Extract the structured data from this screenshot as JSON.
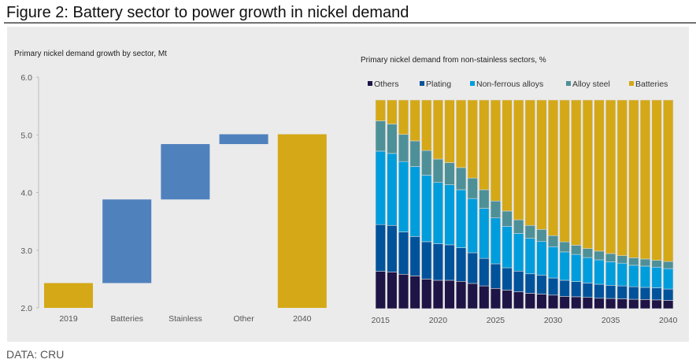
{
  "figure": {
    "title": "Figure 2: Battery sector to power growth in nickel demand",
    "source": "DATA: CRU",
    "background": "#ebebeb"
  },
  "chart_data": [
    {
      "type": "bar",
      "subtype": "waterfall",
      "title": "Primary nickel demand growth by sector, Mt",
      "categories": [
        "2019",
        "Batteries",
        "Stainless",
        "Other",
        "2040"
      ],
      "bars": [
        {
          "category": "2019",
          "start": 2.0,
          "end": 2.43,
          "color": "#d4a817"
        },
        {
          "category": "Batteries",
          "start": 2.43,
          "end": 3.88,
          "color": "#4f81bd"
        },
        {
          "category": "Stainless",
          "start": 3.88,
          "end": 4.84,
          "color": "#4f81bd"
        },
        {
          "category": "Other",
          "start": 4.84,
          "end": 5.01,
          "color": "#4f81bd"
        },
        {
          "category": "2040",
          "start": 2.0,
          "end": 5.01,
          "color": "#d4a817"
        }
      ],
      "ylim": [
        2.0,
        6.0
      ],
      "yticks": [
        "2.0",
        "3.0",
        "4.0",
        "5.0",
        "6.0"
      ],
      "grid": false,
      "legend": "none"
    },
    {
      "type": "bar",
      "subtype": "stacked-100",
      "title": "Primary nickel demand from non-stainless sectors, %",
      "x": [
        2015,
        2016,
        2017,
        2018,
        2019,
        2020,
        2021,
        2022,
        2023,
        2024,
        2025,
        2026,
        2027,
        2028,
        2029,
        2030,
        2031,
        2032,
        2033,
        2034,
        2035,
        2036,
        2037,
        2038,
        2039,
        2040
      ],
      "xticks": [
        "2015",
        "2020",
        "2025",
        "2030",
        "2035",
        "2040"
      ],
      "ylim": [
        0,
        100
      ],
      "grid": false,
      "legend": "top",
      "series": [
        {
          "name": "Others",
          "color": "#1e1446",
          "values": [
            17.9,
            17.6,
            16.5,
            15.7,
            14.2,
            13.6,
            13.6,
            13.1,
            12.1,
            10.9,
            9.7,
            8.9,
            8.1,
            7.4,
            7.0,
            6.5,
            5.9,
            5.7,
            5.4,
            5.0,
            4.9,
            4.7,
            4.5,
            4.4,
            4.2,
            4.0
          ]
        },
        {
          "name": "Plating",
          "color": "#00529b",
          "values": [
            22.4,
            22.3,
            20.3,
            18.9,
            17.9,
            17.5,
            17.0,
            16.1,
            14.7,
            13.2,
            11.8,
            10.7,
            9.9,
            9.3,
            9.1,
            8.2,
            7.7,
            7.3,
            6.9,
            6.7,
            6.3,
            6.2,
            6.0,
            5.8,
            5.8,
            5.4
          ]
        },
        {
          "name": "Non-ferrous alloys",
          "color": "#009ddc",
          "values": [
            35.2,
            34.5,
            33.7,
            33.5,
            31.9,
            29.4,
            28.8,
            27.8,
            26.0,
            24.0,
            22.0,
            19.9,
            18.1,
            17.0,
            16.1,
            15.0,
            13.6,
            13.0,
            12.2,
            11.7,
            11.3,
            10.9,
            10.3,
            10.2,
            9.9,
            9.8
          ]
        },
        {
          "name": "Alloy steel",
          "color": "#4e9097",
          "values": [
            14.5,
            14.1,
            13.0,
            12.3,
            11.8,
            11.2,
            10.6,
            10.6,
            9.8,
            8.9,
            8.1,
            7.3,
            6.5,
            6.2,
            5.8,
            5.3,
            4.8,
            4.4,
            4.3,
            4.2,
            3.9,
            3.6,
            3.6,
            3.4,
            3.3,
            3.4
          ]
        },
        {
          "name": "Batteries",
          "color": "#d4a817",
          "values": [
            10.0,
            11.5,
            16.5,
            19.6,
            24.2,
            28.3,
            30.0,
            32.4,
            37.4,
            43.0,
            48.4,
            53.2,
            57.4,
            60.1,
            62.0,
            65.0,
            68.0,
            69.6,
            71.2,
            72.4,
            73.6,
            74.6,
            75.6,
            76.2,
            76.8,
            77.4
          ]
        }
      ]
    }
  ]
}
